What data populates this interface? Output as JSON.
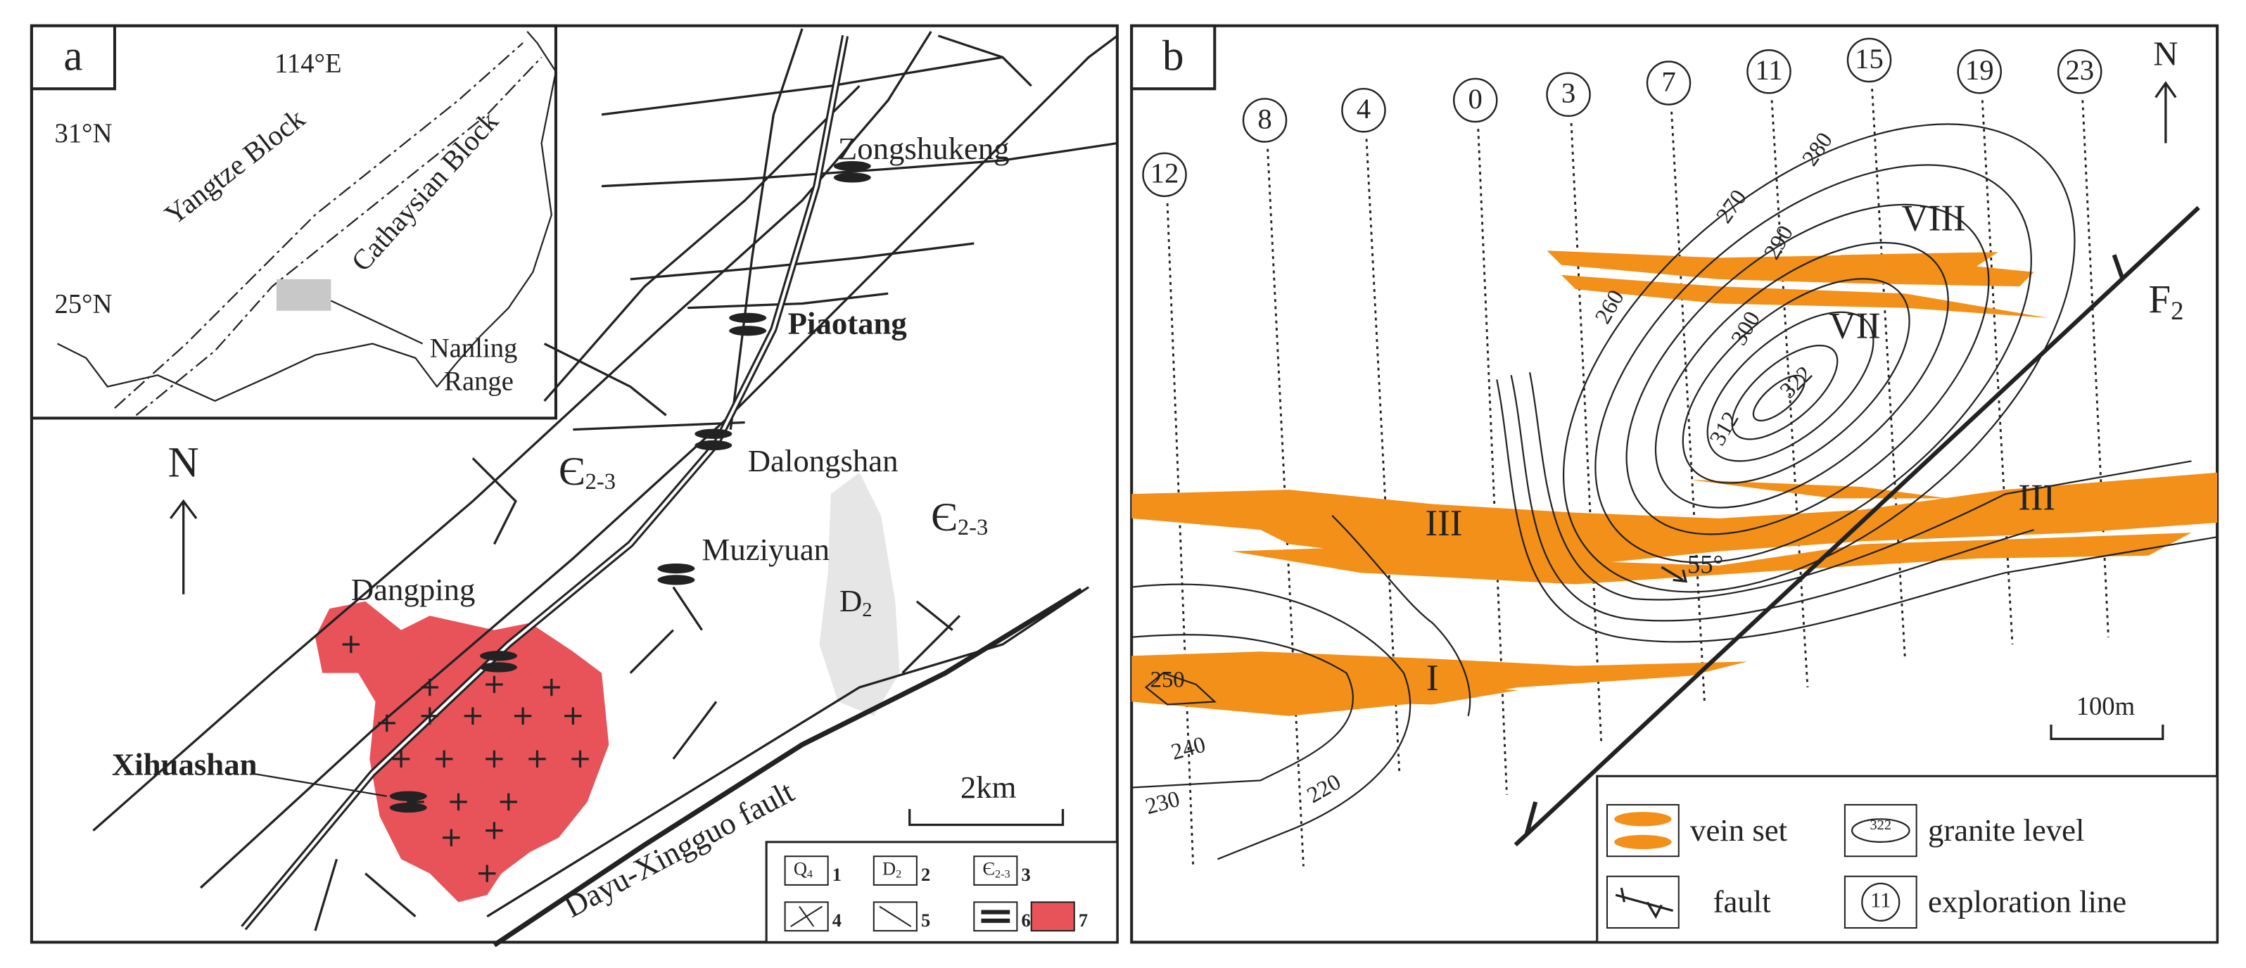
{
  "panel_a": {
    "label": "a",
    "inset": {
      "longitude": "114°E",
      "latitudes": [
        "31°N",
        "25°N"
      ],
      "blocks": [
        "Yangtze Block",
        "Cathaysian Block"
      ],
      "range": [
        "Nanling",
        "Range"
      ]
    },
    "north": "N",
    "deposits": [
      "Zongshukeng",
      "Piaotang",
      "Dalongshan",
      "Muziyuan",
      "Dangping",
      "Xihuashan"
    ],
    "strata": [
      {
        "symbol": "Є",
        "sub": "2-3"
      },
      {
        "symbol": "Є",
        "sub": "2-3"
      },
      {
        "symbol": "D",
        "sub": "2"
      }
    ],
    "fault": "Dayu-Xingguo fault",
    "scale": "2km",
    "legend": [
      {
        "symbol": "Q",
        "sub": "4",
        "number": "1"
      },
      {
        "symbol": "D",
        "sub": "2",
        "number": "2"
      },
      {
        "symbol": "Є",
        "sub": "2-3",
        "number": "3"
      },
      {
        "number": "4"
      },
      {
        "number": "5"
      },
      {
        "number": "6"
      },
      {
        "number": "7"
      }
    ]
  },
  "panel_b": {
    "label": "b",
    "north": "N",
    "exploration_lines": [
      "12",
      "8",
      "4",
      "0",
      "3",
      "7",
      "11",
      "15",
      "19",
      "23"
    ],
    "contours": [
      "250",
      "240",
      "230",
      "220",
      "260",
      "270",
      "280",
      "290",
      "300",
      "312",
      "322"
    ],
    "veins": [
      "VIII",
      "VII",
      "III",
      "III",
      "I"
    ],
    "dip": "55°",
    "fault": {
      "symbol": "F",
      "sub": "2"
    },
    "scale": "100m",
    "legend": [
      {
        "icon": "",
        "text": "vein set"
      },
      {
        "icon": "322",
        "text": "granite level"
      },
      {
        "icon": "",
        "text": "fault"
      },
      {
        "icon": "11",
        "text": "exploration line"
      }
    ]
  }
}
